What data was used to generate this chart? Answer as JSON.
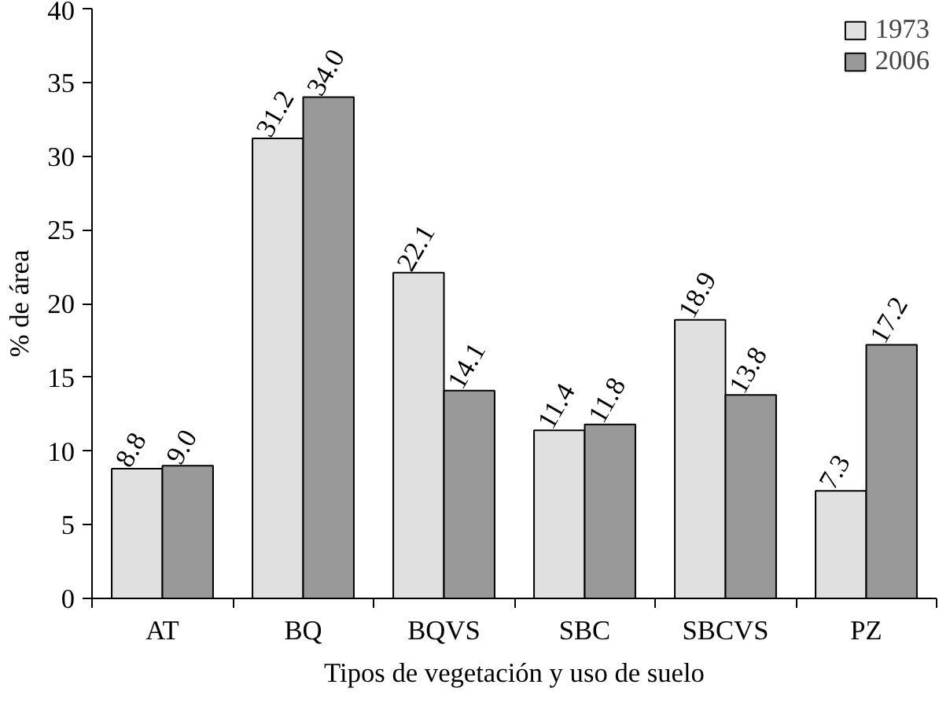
{
  "chart_data": {
    "type": "bar",
    "xlabel": "Tipos de vegetación y uso de suelo",
    "ylabel": "% de área",
    "categories": [
      "AT",
      "BQ",
      "BQVS",
      "SBC",
      "SBCVS",
      "PZ"
    ],
    "series": [
      {
        "name": "1973",
        "color": "#e0e0e0",
        "values": [
          8.8,
          31.2,
          22.1,
          11.4,
          18.9,
          7.3
        ],
        "value_labels": [
          "8.8",
          "31.2",
          "22.1",
          "11.4",
          "18.9",
          "7.3"
        ]
      },
      {
        "name": "2006",
        "color": "#999999",
        "values": [
          9.0,
          34.0,
          14.1,
          11.8,
          13.8,
          17.2
        ],
        "value_labels": [
          "9.0",
          "34.0",
          "14.1",
          "11.8",
          "13.8",
          "17.2"
        ]
      }
    ],
    "ylim": [
      0,
      40
    ],
    "yticks": [
      0,
      5,
      10,
      15,
      20,
      25,
      30,
      35,
      40
    ],
    "legend": "top right",
    "grid": false
  }
}
